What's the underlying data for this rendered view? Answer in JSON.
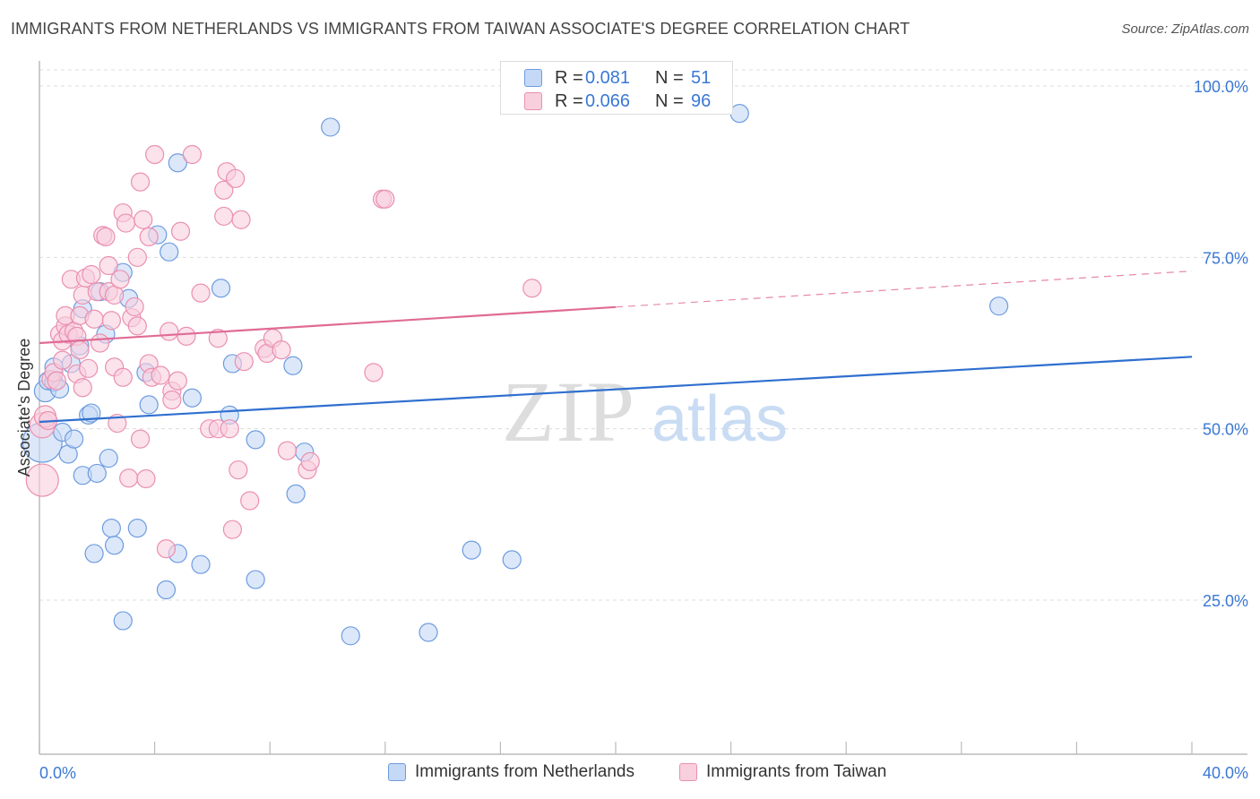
{
  "title": "IMMIGRANTS FROM NETHERLANDS VS IMMIGRANTS FROM TAIWAN ASSOCIATE'S DEGREE CORRELATION CHART",
  "source": "Source: ZipAtlas.com",
  "watermark": {
    "zip": "ZIP",
    "atlas": "atlas"
  },
  "legend_top": {
    "rows": [
      {
        "r_label": "R =",
        "r_value": "0.081",
        "n_label": "N =",
        "n_value": "51"
      },
      {
        "r_label": "R =",
        "r_value": "0.066",
        "n_label": "N =",
        "n_value": "96"
      }
    ]
  },
  "legend_bottom": {
    "netherlands": "Immigrants from Netherlands",
    "taiwan": "Immigrants from Taiwan"
  },
  "colors": {
    "blue_fill": "#c5d8f5",
    "blue_stroke": "#6d9be0",
    "blue_line": "#2f6fd0",
    "pink_fill": "#f8cfdd",
    "pink_stroke": "#ea8fb0",
    "pink_line": "#e06b95",
    "tick_label": "#3a78d4",
    "grid": "#dcdcdc"
  },
  "chart_data": {
    "type": "scatter",
    "title": "IMMIGRANTS FROM NETHERLANDS VS IMMIGRANTS FROM TAIWAN ASSOCIATE'S DEGREE CORRELATION CHART",
    "xlabel": "",
    "ylabel": "Associate's Degree",
    "xlim": [
      0,
      40
    ],
    "ylim": [
      0,
      103
    ],
    "x_tick_labels": [
      "0.0%",
      "40.0%"
    ],
    "y_ticks": [
      25,
      50,
      75,
      100
    ],
    "y_tick_labels": [
      "25.0%",
      "50.0%",
      "75.0%",
      "100.0%"
    ],
    "grid": "horizontal dashed",
    "legend": "bottom-center",
    "series": [
      {
        "name": "Immigrants from Netherlands",
        "r": 0.081,
        "n": 51,
        "trend": {
          "x": [
            0,
            40
          ],
          "y": [
            51.0,
            60.5
          ],
          "dashed_from": null
        },
        "points": [
          [
            0.1,
            48.0,
            22
          ],
          [
            0.2,
            55.5,
            12
          ],
          [
            0.3,
            57.0,
            10
          ],
          [
            0.5,
            59.0,
            10
          ],
          [
            0.5,
            56.8,
            10
          ],
          [
            0.7,
            55.8,
            10
          ],
          [
            0.8,
            49.5,
            10
          ],
          [
            1.0,
            46.3,
            10
          ],
          [
            1.2,
            48.5,
            10
          ],
          [
            1.1,
            59.5,
            10
          ],
          [
            1.4,
            62.1,
            10
          ],
          [
            1.5,
            67.5,
            10
          ],
          [
            1.5,
            43.2,
            10
          ],
          [
            1.7,
            52.0,
            10
          ],
          [
            1.8,
            52.3,
            10
          ],
          [
            2.0,
            43.5,
            10
          ],
          [
            2.1,
            70.0,
            10
          ],
          [
            2.3,
            63.8,
            10
          ],
          [
            2.4,
            45.7,
            10
          ],
          [
            2.5,
            35.5,
            10
          ],
          [
            2.6,
            33.0,
            10
          ],
          [
            1.9,
            31.8,
            10
          ],
          [
            2.9,
            22.0,
            10
          ],
          [
            2.9,
            72.8,
            10
          ],
          [
            3.1,
            69.0,
            10
          ],
          [
            3.4,
            35.5,
            10
          ],
          [
            3.7,
            58.2,
            10
          ],
          [
            3.8,
            53.5,
            10
          ],
          [
            4.1,
            78.3,
            10
          ],
          [
            4.5,
            75.8,
            10
          ],
          [
            4.4,
            26.5,
            10
          ],
          [
            4.8,
            31.8,
            10
          ],
          [
            4.8,
            88.8,
            10
          ],
          [
            5.3,
            54.5,
            10
          ],
          [
            5.6,
            30.2,
            10
          ],
          [
            6.3,
            70.5,
            10
          ],
          [
            6.6,
            52.0,
            10
          ],
          [
            6.7,
            59.5,
            10
          ],
          [
            7.5,
            48.4,
            10
          ],
          [
            7.5,
            28.0,
            10
          ],
          [
            8.8,
            59.2,
            10
          ],
          [
            8.9,
            40.5,
            10
          ],
          [
            9.2,
            46.6,
            10
          ],
          [
            10.1,
            94.0,
            10
          ],
          [
            10.8,
            19.8,
            10
          ],
          [
            13.5,
            20.3,
            10
          ],
          [
            15.0,
            32.3,
            10
          ],
          [
            16.4,
            30.9,
            10
          ],
          [
            24.3,
            96.0,
            10
          ],
          [
            33.3,
            67.9,
            10
          ]
        ]
      },
      {
        "name": "Immigrants from Taiwan",
        "r": 0.066,
        "n": 96,
        "trend": {
          "x": [
            0,
            40
          ],
          "y": [
            62.5,
            73.0
          ],
          "solid_until_x": 20
        },
        "points": [
          [
            0.1,
            42.5,
            18
          ],
          [
            0.1,
            50.5,
            14
          ],
          [
            0.2,
            51.8,
            12
          ],
          [
            0.3,
            51.2,
            10
          ],
          [
            0.4,
            57.2,
            10
          ],
          [
            0.5,
            58.2,
            10
          ],
          [
            0.6,
            57.0,
            10
          ],
          [
            0.7,
            63.8,
            10
          ],
          [
            0.8,
            62.8,
            10
          ],
          [
            0.8,
            60.0,
            10
          ],
          [
            0.9,
            65.0,
            10
          ],
          [
            0.9,
            66.5,
            10
          ],
          [
            1.0,
            63.8,
            10
          ],
          [
            1.1,
            71.8,
            10
          ],
          [
            1.2,
            64.2,
            10
          ],
          [
            1.3,
            63.5,
            10
          ],
          [
            1.3,
            58.0,
            10
          ],
          [
            1.4,
            66.5,
            10
          ],
          [
            1.4,
            61.5,
            10
          ],
          [
            1.5,
            69.5,
            10
          ],
          [
            1.5,
            56.0,
            10
          ],
          [
            1.6,
            72.0,
            10
          ],
          [
            1.7,
            58.8,
            10
          ],
          [
            1.8,
            72.5,
            10
          ],
          [
            1.9,
            66.0,
            10
          ],
          [
            2.0,
            70.0,
            10
          ],
          [
            2.1,
            62.5,
            10
          ],
          [
            2.2,
            78.2,
            10
          ],
          [
            2.3,
            78.0,
            10
          ],
          [
            2.4,
            73.8,
            10
          ],
          [
            2.4,
            70.0,
            10
          ],
          [
            2.5,
            65.8,
            10
          ],
          [
            2.6,
            69.5,
            10
          ],
          [
            2.6,
            59.0,
            10
          ],
          [
            2.7,
            50.8,
            10
          ],
          [
            2.8,
            71.8,
            10
          ],
          [
            2.9,
            81.5,
            10
          ],
          [
            2.9,
            57.5,
            10
          ],
          [
            3.0,
            80.0,
            10
          ],
          [
            3.1,
            42.8,
            10
          ],
          [
            3.2,
            66.2,
            10
          ],
          [
            3.3,
            67.8,
            10
          ],
          [
            3.4,
            75.0,
            10
          ],
          [
            3.4,
            65.0,
            10
          ],
          [
            3.5,
            48.5,
            10
          ],
          [
            3.5,
            86.0,
            10
          ],
          [
            3.6,
            80.5,
            10
          ],
          [
            3.7,
            42.7,
            10
          ],
          [
            3.8,
            78.0,
            10
          ],
          [
            3.8,
            59.5,
            10
          ],
          [
            3.9,
            57.5,
            10
          ],
          [
            4.0,
            90.0,
            10
          ],
          [
            4.2,
            57.8,
            10
          ],
          [
            4.4,
            32.5,
            10
          ],
          [
            4.5,
            64.2,
            10
          ],
          [
            4.6,
            55.5,
            10
          ],
          [
            4.6,
            54.2,
            10
          ],
          [
            4.8,
            57.0,
            10
          ],
          [
            4.9,
            78.8,
            10
          ],
          [
            5.1,
            63.5,
            10
          ],
          [
            5.3,
            90.0,
            10
          ],
          [
            5.6,
            69.8,
            10
          ],
          [
            5.9,
            50.0,
            10
          ],
          [
            6.2,
            63.2,
            10
          ],
          [
            6.2,
            50.0,
            10
          ],
          [
            6.4,
            84.8,
            10
          ],
          [
            6.4,
            81.0,
            10
          ],
          [
            6.5,
            87.5,
            10
          ],
          [
            6.6,
            50.0,
            10
          ],
          [
            6.7,
            35.3,
            10
          ],
          [
            6.8,
            86.5,
            10
          ],
          [
            6.9,
            44.0,
            10
          ],
          [
            7.0,
            80.5,
            10
          ],
          [
            7.1,
            59.8,
            10
          ],
          [
            7.3,
            39.5,
            10
          ],
          [
            7.8,
            61.7,
            10
          ],
          [
            7.9,
            61.0,
            10
          ],
          [
            8.1,
            63.2,
            10
          ],
          [
            8.4,
            61.5,
            10
          ],
          [
            8.6,
            46.8,
            10
          ],
          [
            9.3,
            44.0,
            10
          ],
          [
            9.4,
            45.2,
            10
          ],
          [
            11.6,
            58.2,
            10
          ],
          [
            11.9,
            83.5,
            10
          ],
          [
            12.0,
            83.5,
            10
          ],
          [
            17.1,
            70.5,
            10
          ]
        ]
      }
    ]
  }
}
